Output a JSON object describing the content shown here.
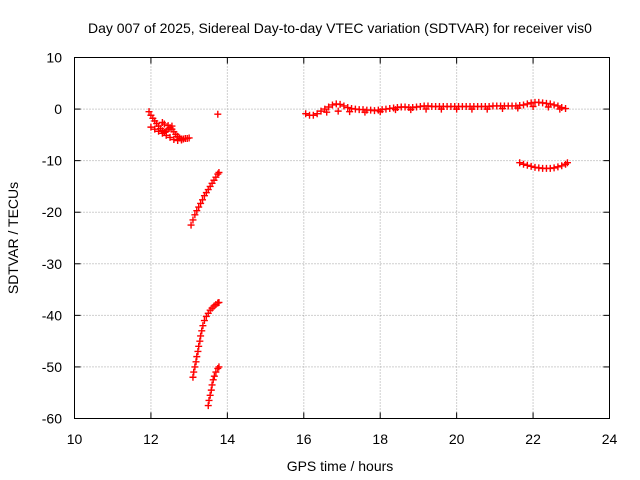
{
  "chart_data": {
    "type": "scatter",
    "title": "Day 007 of 2025, Sidereal Day-to-day VTEC variation (SDTVAR) for receiver vis0",
    "xlabel": "GPS time / hours",
    "ylabel": "SDTVAR / TECUs",
    "xlim": [
      10,
      24
    ],
    "ylim": [
      -60,
      10
    ],
    "xticks": [
      10,
      12,
      14,
      16,
      18,
      20,
      22,
      24
    ],
    "yticks": [
      -60,
      -50,
      -40,
      -30,
      -20,
      -10,
      0,
      10
    ],
    "xtick_labels": [
      "10",
      "12",
      "14",
      "16",
      "18",
      "20",
      "22",
      "24"
    ],
    "ytick_labels": [
      "-60",
      "-50",
      "-40",
      "-30",
      "-20",
      "-10",
      "0",
      "10"
    ],
    "grid": true,
    "marker": "+",
    "color": "#ff0000",
    "series": [
      {
        "points": [
          [
            11.95,
            -0.5
          ],
          [
            12.0,
            -1.2
          ],
          [
            12.05,
            -1.8
          ],
          [
            12.1,
            -2.3
          ],
          [
            12.15,
            -2.8
          ],
          [
            12.2,
            -3.3
          ],
          [
            12.25,
            -3.8
          ],
          [
            12.3,
            -4.2
          ],
          [
            12.35,
            -4.5
          ],
          [
            12.4,
            -4.3
          ],
          [
            12.45,
            -3.9
          ],
          [
            12.5,
            -3.6
          ],
          [
            12.55,
            -3.9
          ],
          [
            12.6,
            -4.4
          ],
          [
            12.65,
            -4.9
          ],
          [
            12.7,
            -5.3
          ],
          [
            12.75,
            -5.6
          ],
          [
            12.8,
            -5.8
          ],
          [
            12.85,
            -5.8
          ],
          [
            12.9,
            -5.7
          ],
          [
            12.95,
            -5.7
          ],
          [
            13.0,
            -5.6
          ],
          [
            12.0,
            -3.5
          ],
          [
            12.1,
            -3.9
          ],
          [
            12.2,
            -4.3
          ],
          [
            12.3,
            -4.7
          ],
          [
            12.4,
            -5.1
          ],
          [
            12.5,
            -5.5
          ],
          [
            12.6,
            -5.9
          ],
          [
            12.7,
            -6.1
          ],
          [
            12.8,
            -6.0
          ],
          [
            12.3,
            -2.6
          ],
          [
            12.35,
            -2.9
          ],
          [
            12.45,
            -3.2
          ],
          [
            12.55,
            -3.3
          ]
        ]
      },
      {
        "points": [
          [
            13.75,
            -1.0
          ]
        ]
      },
      {
        "points": [
          [
            13.05,
            -22.5
          ],
          [
            13.1,
            -21.5
          ],
          [
            13.15,
            -20.5
          ],
          [
            13.2,
            -19.7
          ],
          [
            13.25,
            -19.0
          ],
          [
            13.3,
            -18.3
          ],
          [
            13.35,
            -17.6
          ],
          [
            13.4,
            -16.8
          ],
          [
            13.45,
            -16.2
          ],
          [
            13.5,
            -15.6
          ],
          [
            13.55,
            -15.0
          ],
          [
            13.6,
            -14.4
          ],
          [
            13.65,
            -13.8
          ],
          [
            13.7,
            -13.2
          ],
          [
            13.75,
            -12.6
          ],
          [
            13.78,
            -12.3
          ]
        ]
      },
      {
        "points": [
          [
            13.1,
            -52.0
          ],
          [
            13.12,
            -51.0
          ],
          [
            13.15,
            -50.0
          ],
          [
            13.18,
            -49.0
          ],
          [
            13.2,
            -48.0
          ],
          [
            13.23,
            -47.0
          ],
          [
            13.25,
            -46.0
          ],
          [
            13.28,
            -45.0
          ],
          [
            13.3,
            -44.0
          ],
          [
            13.33,
            -43.0
          ],
          [
            13.36,
            -42.0
          ],
          [
            13.4,
            -41.0
          ],
          [
            13.45,
            -40.2
          ],
          [
            13.5,
            -39.6
          ],
          [
            13.55,
            -39.0
          ],
          [
            13.6,
            -38.6
          ],
          [
            13.65,
            -38.2
          ],
          [
            13.7,
            -37.9
          ],
          [
            13.75,
            -37.6
          ],
          [
            13.78,
            -37.5
          ]
        ]
      },
      {
        "points": [
          [
            13.5,
            -57.5
          ],
          [
            13.52,
            -56.5
          ],
          [
            13.55,
            -55.5
          ],
          [
            13.58,
            -54.5
          ],
          [
            13.6,
            -53.5
          ],
          [
            13.63,
            -52.5
          ],
          [
            13.66,
            -51.8
          ],
          [
            13.7,
            -51.0
          ],
          [
            13.75,
            -50.3
          ],
          [
            13.78,
            -50.0
          ]
        ]
      },
      {
        "points": [
          [
            16.05,
            -0.9
          ],
          [
            16.15,
            -1.2
          ],
          [
            16.25,
            -1.2
          ],
          [
            16.35,
            -0.9
          ],
          [
            16.45,
            -0.4
          ],
          [
            16.55,
            0.0
          ],
          [
            16.65,
            0.4
          ],
          [
            16.75,
            0.8
          ],
          [
            16.85,
            1.0
          ],
          [
            16.95,
            0.9
          ],
          [
            17.05,
            0.6
          ],
          [
            17.15,
            0.3
          ],
          [
            17.25,
            0.1
          ],
          [
            17.35,
            0.0
          ],
          [
            17.45,
            -0.1
          ],
          [
            17.55,
            -0.1
          ],
          [
            17.65,
            -0.2
          ],
          [
            17.75,
            -0.2
          ],
          [
            17.85,
            -0.3
          ],
          [
            17.95,
            -0.2
          ],
          [
            18.05,
            -0.1
          ],
          [
            18.15,
            0.0
          ],
          [
            18.25,
            0.1
          ],
          [
            18.35,
            0.2
          ],
          [
            18.45,
            0.3
          ],
          [
            18.55,
            0.4
          ],
          [
            18.65,
            0.4
          ],
          [
            18.75,
            0.3
          ],
          [
            18.85,
            0.3
          ],
          [
            18.95,
            0.4
          ],
          [
            19.05,
            0.5
          ],
          [
            19.15,
            0.6
          ],
          [
            19.25,
            0.6
          ],
          [
            19.35,
            0.5
          ],
          [
            19.45,
            0.5
          ],
          [
            19.55,
            0.5
          ],
          [
            19.65,
            0.5
          ],
          [
            19.75,
            0.5
          ],
          [
            19.85,
            0.5
          ],
          [
            19.95,
            0.5
          ],
          [
            20.05,
            0.5
          ],
          [
            20.15,
            0.5
          ],
          [
            20.25,
            0.5
          ],
          [
            20.35,
            0.5
          ],
          [
            20.45,
            0.5
          ],
          [
            20.55,
            0.5
          ],
          [
            20.65,
            0.5
          ],
          [
            20.75,
            0.5
          ],
          [
            20.85,
            0.5
          ],
          [
            20.95,
            0.6
          ],
          [
            21.05,
            0.6
          ],
          [
            21.15,
            0.6
          ],
          [
            21.25,
            0.6
          ],
          [
            21.35,
            0.6
          ],
          [
            21.45,
            0.6
          ],
          [
            21.55,
            0.6
          ],
          [
            21.65,
            0.7
          ],
          [
            21.75,
            0.8
          ],
          [
            21.85,
            1.0
          ],
          [
            21.95,
            1.2
          ],
          [
            22.05,
            1.3
          ],
          [
            22.15,
            1.3
          ],
          [
            22.25,
            1.2
          ],
          [
            22.35,
            1.1
          ],
          [
            22.45,
            1.0
          ],
          [
            22.55,
            0.8
          ],
          [
            22.65,
            0.6
          ],
          [
            22.75,
            0.3
          ],
          [
            22.85,
            0.1
          ],
          [
            16.6,
            -0.6
          ],
          [
            16.9,
            -0.4
          ],
          [
            17.2,
            -0.5
          ],
          [
            17.6,
            -0.6
          ],
          [
            18.0,
            -0.5
          ],
          [
            18.4,
            -0.1
          ],
          [
            18.8,
            -0.1
          ],
          [
            19.2,
            0.0
          ],
          [
            19.6,
            0.0
          ],
          [
            20.0,
            0.0
          ],
          [
            20.4,
            0.0
          ],
          [
            20.8,
            0.0
          ],
          [
            21.2,
            0.1
          ],
          [
            21.6,
            0.2
          ],
          [
            22.0,
            0.5
          ],
          [
            22.4,
            0.4
          ],
          [
            22.7,
            0.0
          ]
        ]
      },
      {
        "points": [
          [
            21.65,
            -10.4
          ],
          [
            21.75,
            -10.7
          ],
          [
            21.85,
            -10.9
          ],
          [
            21.95,
            -11.1
          ],
          [
            22.05,
            -11.3
          ],
          [
            22.15,
            -11.4
          ],
          [
            22.25,
            -11.5
          ],
          [
            22.35,
            -11.5
          ],
          [
            22.45,
            -11.5
          ],
          [
            22.55,
            -11.4
          ],
          [
            22.65,
            -11.2
          ],
          [
            22.75,
            -11.0
          ],
          [
            22.85,
            -10.7
          ],
          [
            22.9,
            -10.4
          ]
        ]
      }
    ]
  }
}
